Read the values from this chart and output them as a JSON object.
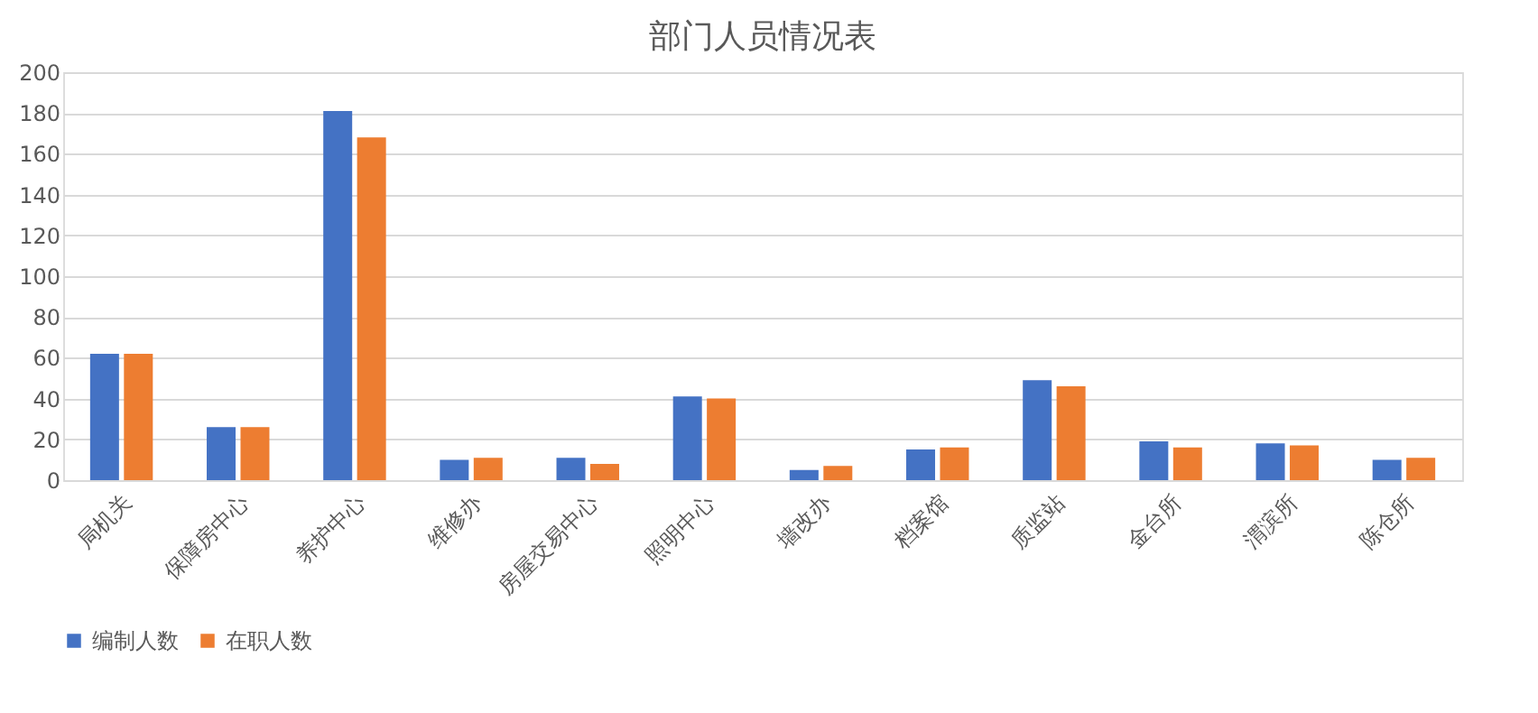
{
  "chart_data": {
    "type": "bar",
    "title": "部门人员情况表",
    "categories": [
      "局机关",
      "保障房中心",
      "养护中心",
      "维修办",
      "房屋交易中心",
      "照明中心",
      "墙改办",
      "档案馆",
      "质监站",
      "金台所",
      "渭滨所",
      "陈仓所"
    ],
    "series": [
      {
        "name": "编制人数",
        "color": "#4472c4",
        "values": [
          62,
          26,
          181,
          10,
          11,
          41,
          5,
          15,
          49,
          19,
          18,
          10
        ]
      },
      {
        "name": "在职人数",
        "color": "#ed7d31",
        "values": [
          62,
          26,
          168,
          11,
          8,
          40,
          7,
          16,
          46,
          16,
          17,
          11
        ]
      }
    ],
    "ylim": [
      0,
      200
    ],
    "yticks": [
      0,
      20,
      40,
      60,
      80,
      100,
      120,
      140,
      160,
      180,
      200
    ],
    "grid": "y",
    "legend": "bottom"
  }
}
